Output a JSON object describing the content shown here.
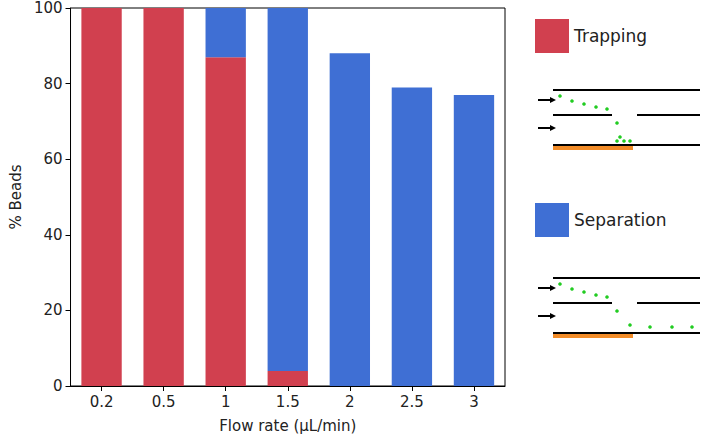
{
  "chart_data": {
    "type": "bar",
    "categories": [
      "0.2",
      "0.5",
      "1",
      "1.5",
      "2",
      "2.5",
      "3"
    ],
    "series": [
      {
        "name": "Trapping",
        "color": "#d1404f",
        "values": [
          100,
          100,
          87,
          4,
          0,
          0,
          0
        ]
      },
      {
        "name": "Separation",
        "color": "#3f6fd4",
        "values": [
          0,
          0,
          13,
          96,
          88,
          79,
          77
        ]
      }
    ],
    "x_label": "Flow rate (µL/min)",
    "y_label": "% Beads",
    "ylim": [
      0,
      100
    ],
    "yticks": [
      0,
      20,
      40,
      60,
      80,
      100
    ],
    "stacked": true,
    "grid": false,
    "legend": "right"
  }
}
